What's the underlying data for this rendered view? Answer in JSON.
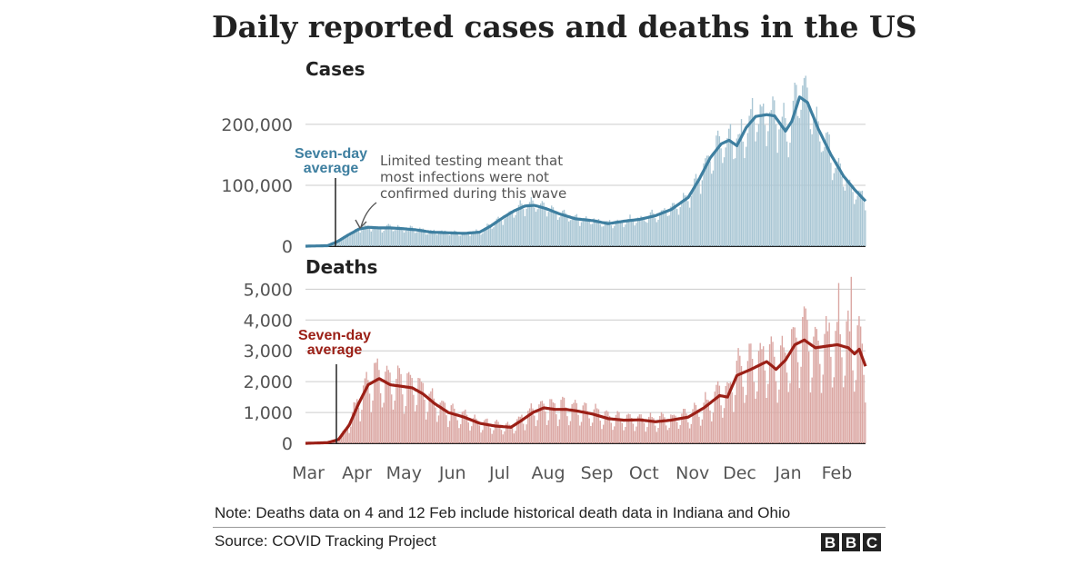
{
  "title": "Daily reported cases and deaths in the US",
  "note": "Note: Deaths data on 4 and 12 Feb include historical death data in Indiana and Ohio",
  "source": "Source: COVID Tracking Project",
  "logo_letters": [
    "B",
    "B",
    "C"
  ],
  "colors": {
    "cases_bar": "#a9c6d4",
    "cases_line": "#3e7fa0",
    "deaths_bar": "#dba7a3",
    "deaths_line": "#9b1f16",
    "grid": "#cccccc"
  },
  "chart_data": [
    {
      "type": "bar",
      "title": "Cases",
      "series_label": "Seven-day average",
      "annotation": "Limited testing meant that most infections were not confirmed during this wave",
      "xlabel": "",
      "ylabel": "",
      "x_tick_labels": [
        "Mar",
        "Apr",
        "May",
        "Jun",
        "Jul",
        "Aug",
        "Sep",
        "Oct",
        "Nov",
        "Dec",
        "Jan",
        "Feb"
      ],
      "y_ticks": [
        0,
        100000,
        200000
      ],
      "y_tick_labels": [
        "0",
        "100,000",
        "200,000"
      ],
      "ylim": [
        0,
        270000
      ],
      "x_start": "2020-03-01",
      "seven_day_average": [
        [
          "2020-03-01",
          0
        ],
        [
          "2020-03-15",
          800
        ],
        [
          "2020-03-21",
          7000
        ],
        [
          "2020-03-28",
          18000
        ],
        [
          "2020-04-04",
          28000
        ],
        [
          "2020-04-10",
          31000
        ],
        [
          "2020-04-17",
          30000
        ],
        [
          "2020-04-24",
          30000
        ],
        [
          "2020-05-01",
          29000
        ],
        [
          "2020-05-10",
          27000
        ],
        [
          "2020-05-20",
          23000
        ],
        [
          "2020-05-31",
          22000
        ],
        [
          "2020-06-10",
          21000
        ],
        [
          "2020-06-20",
          23000
        ],
        [
          "2020-06-27",
          33000
        ],
        [
          "2020-07-05",
          47000
        ],
        [
          "2020-07-12",
          58000
        ],
        [
          "2020-07-19",
          66000
        ],
        [
          "2020-07-25",
          67000
        ],
        [
          "2020-08-01",
          62000
        ],
        [
          "2020-08-10",
          53000
        ],
        [
          "2020-08-20",
          45000
        ],
        [
          "2020-08-31",
          42000
        ],
        [
          "2020-09-10",
          37000
        ],
        [
          "2020-09-20",
          41000
        ],
        [
          "2020-09-30",
          44000
        ],
        [
          "2020-10-10",
          50000
        ],
        [
          "2020-10-20",
          60000
        ],
        [
          "2020-10-31",
          80000
        ],
        [
          "2020-11-07",
          110000
        ],
        [
          "2020-11-14",
          145000
        ],
        [
          "2020-11-21",
          168000
        ],
        [
          "2020-11-26",
          174000
        ],
        [
          "2020-12-01",
          165000
        ],
        [
          "2020-12-07",
          195000
        ],
        [
          "2020-12-13",
          213000
        ],
        [
          "2020-12-20",
          216000
        ],
        [
          "2020-12-25",
          214000
        ],
        [
          "2021-01-01",
          189000
        ],
        [
          "2021-01-05",
          205000
        ],
        [
          "2021-01-10",
          245000
        ],
        [
          "2021-01-15",
          236000
        ],
        [
          "2021-01-22",
          192000
        ],
        [
          "2021-01-30",
          150000
        ],
        [
          "2021-02-07",
          115000
        ],
        [
          "2021-02-14",
          93000
        ],
        [
          "2021-02-21",
          74000
        ]
      ]
    },
    {
      "type": "bar",
      "title": "Deaths",
      "series_label": "Seven-day average",
      "xlabel": "",
      "ylabel": "",
      "x_tick_labels": [
        "Mar",
        "Apr",
        "May",
        "Jun",
        "Jul",
        "Aug",
        "Sep",
        "Oct",
        "Nov",
        "Dec",
        "Jan",
        "Feb"
      ],
      "y_ticks": [
        0,
        1000,
        2000,
        3000,
        4000,
        5000
      ],
      "y_tick_labels": [
        "0",
        "1,000",
        "2,000",
        "3,000",
        "4,000",
        "5,000"
      ],
      "ylim": [
        0,
        5600
      ],
      "x_start": "2020-03-01",
      "seven_day_average": [
        [
          "2020-03-01",
          0
        ],
        [
          "2020-03-15",
          20
        ],
        [
          "2020-03-22",
          120
        ],
        [
          "2020-03-29",
          600
        ],
        [
          "2020-04-04",
          1300
        ],
        [
          "2020-04-10",
          1900
        ],
        [
          "2020-04-17",
          2100
        ],
        [
          "2020-04-24",
          1900
        ],
        [
          "2020-05-01",
          1850
        ],
        [
          "2020-05-08",
          1800
        ],
        [
          "2020-05-15",
          1600
        ],
        [
          "2020-05-22",
          1300
        ],
        [
          "2020-05-31",
          1000
        ],
        [
          "2020-06-10",
          850
        ],
        [
          "2020-06-20",
          650
        ],
        [
          "2020-06-30",
          560
        ],
        [
          "2020-07-10",
          520
        ],
        [
          "2020-07-17",
          750
        ],
        [
          "2020-07-24",
          1000
        ],
        [
          "2020-07-31",
          1150
        ],
        [
          "2020-08-07",
          1100
        ],
        [
          "2020-08-14",
          1100
        ],
        [
          "2020-08-21",
          1050
        ],
        [
          "2020-08-31",
          950
        ],
        [
          "2020-09-10",
          800
        ],
        [
          "2020-09-20",
          750
        ],
        [
          "2020-09-30",
          760
        ],
        [
          "2020-10-10",
          700
        ],
        [
          "2020-10-20",
          750
        ],
        [
          "2020-10-31",
          850
        ],
        [
          "2020-11-10",
          1150
        ],
        [
          "2020-11-20",
          1550
        ],
        [
          "2020-11-25",
          1500
        ],
        [
          "2020-12-01",
          2200
        ],
        [
          "2020-12-10",
          2400
        ],
        [
          "2020-12-20",
          2650
        ],
        [
          "2020-12-26",
          2400
        ],
        [
          "2021-01-01",
          2700
        ],
        [
          "2021-01-07",
          3200
        ],
        [
          "2021-01-13",
          3350
        ],
        [
          "2021-01-20",
          3100
        ],
        [
          "2021-01-27",
          3150
        ],
        [
          "2021-02-03",
          3200
        ],
        [
          "2021-02-10",
          3100
        ],
        [
          "2021-02-14",
          2900
        ],
        [
          "2021-02-17",
          3050
        ],
        [
          "2021-02-21",
          2500
        ]
      ]
    }
  ]
}
